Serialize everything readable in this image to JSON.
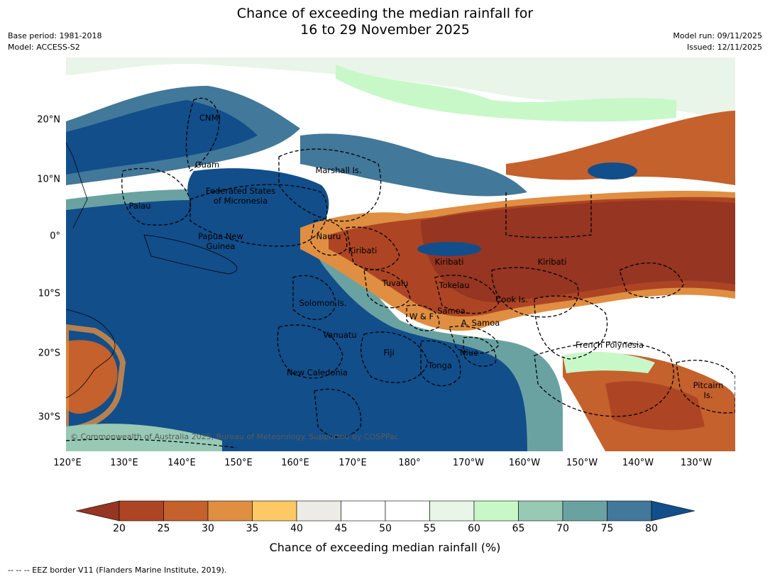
{
  "title_line1": "Chance of exceeding the median rainfall for",
  "title_line2": "16 to 29 November 2025",
  "base_period": "Base period: 1981-2018",
  "model": "Model: ACCESS-S2",
  "model_run": "Model run: 09/11/2025",
  "issued": "Issued: 12/11/2025",
  "lat_labels": [
    "20°N",
    "10°N",
    "0°",
    "10°S",
    "20°S",
    "30°S"
  ],
  "lon_labels": [
    "120°E",
    "130°E",
    "140°E",
    "150°E",
    "160°E",
    "170°E",
    "180°",
    "170°W",
    "160°W",
    "150°W",
    "140°W",
    "130°W"
  ],
  "places": {
    "cnmi": "CNMI",
    "guam": "Guam",
    "marshall": "Marshall Is.",
    "fsm1": "Federated States",
    "fsm2": "of Micronesia",
    "palau": "Palau",
    "png1": "Papua New",
    "png2": "Guinea",
    "nauru": "Nauru",
    "kiribati_w": "Kiribati",
    "kiribati_c": "Kiribati",
    "kiribati_e": "Kiribati",
    "tuvalu": "Tuvalu",
    "tokelau": "Tokelau",
    "solomon": "Solomon Is.",
    "cook": "Cook Is.",
    "samoa": "Samoa",
    "wf": "W & F",
    "asamoa": "A. Samoa",
    "vanuatu": "Vanuatu",
    "fiji": "Fiji",
    "niue": "Niue",
    "tonga": "Tonga",
    "newcal": "New Caledonia",
    "frpoly": "French Polynesia",
    "pitcairn1": "Pitcairn",
    "pitcairn2": "Is."
  },
  "copyright": "© Commonwealth of Australia 2025, Bureau of Meteorology. Supported by COSPPac",
  "colorbar": {
    "ticks": [
      "20",
      "25",
      "30",
      "35",
      "40",
      "45",
      "50",
      "55",
      "60",
      "65",
      "70",
      "75",
      "80"
    ],
    "label": "Chance of exceeding median rainfall (%)",
    "colors": [
      "#ad4524",
      "#c4612d",
      "#df8e42",
      "#fec965",
      "#edebe6",
      "#ffffff",
      "#ffffff",
      "#e8f5e8",
      "#c8f8c8",
      "#97c9b5",
      "#6aa2a2",
      "#42789a"
    ],
    "under_color": "#953522",
    "over_color": "#124e8a"
  },
  "footer": "--  --  -- EEZ border V11 (Flanders Marine Institute, 2019)."
}
